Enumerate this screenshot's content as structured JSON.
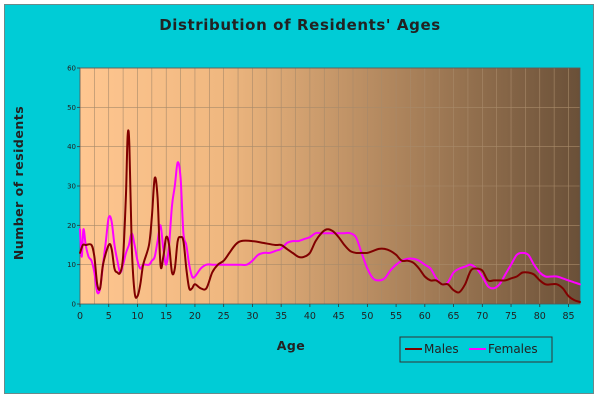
{
  "chart_data": {
    "type": "line",
    "title": "Distribution of Residents' Ages",
    "xlabel": "Age",
    "ylabel": "Number of residents",
    "xlim": [
      0,
      87
    ],
    "ylim": [
      0,
      60
    ],
    "xticks": [
      0,
      5,
      10,
      15,
      20,
      25,
      30,
      35,
      40,
      45,
      50,
      55,
      60,
      65,
      70,
      75,
      80,
      85
    ],
    "yticks": [
      0,
      10,
      20,
      30,
      40,
      50,
      60
    ],
    "grid": true,
    "legend_position": "bottom-right",
    "colors": {
      "background": "#00ccd6",
      "plot_light": "#ffc690",
      "plot_dark": "#6a5038",
      "grid": "#a88a6a"
    },
    "series": [
      {
        "name": "Males",
        "color": "#800000",
        "x": [
          0,
          0.5,
          1,
          2,
          2.5,
          3,
          3.5,
          4,
          5,
          5.5,
          6,
          6.5,
          7,
          7.5,
          8,
          8.3,
          8.6,
          9,
          9.5,
          10,
          10.5,
          11,
          12,
          12.5,
          13,
          13.5,
          14,
          14.5,
          15,
          15.5,
          16,
          16.5,
          17,
          17.5,
          18,
          18.5,
          19,
          19.5,
          20,
          21,
          22,
          23,
          24,
          25,
          26,
          27,
          28,
          30,
          32,
          34,
          35,
          36,
          37,
          38,
          39,
          40,
          41,
          42,
          43,
          44,
          45,
          46,
          47,
          48,
          49,
          50,
          51,
          52,
          53,
          54,
          55,
          56,
          57,
          58,
          59,
          60,
          61,
          62,
          63,
          64,
          65,
          66,
          67,
          68,
          69,
          70,
          71,
          72,
          73,
          74,
          75,
          76,
          77,
          78,
          79,
          80,
          81,
          82,
          83,
          84,
          85,
          86,
          87
        ],
        "values": [
          13,
          15,
          15,
          15,
          12,
          5,
          4,
          10,
          15,
          14,
          9,
          8,
          8,
          12,
          28,
          43,
          40,
          15,
          3,
          2,
          5,
          10,
          15,
          22,
          32,
          27,
          10,
          12,
          17,
          15,
          8,
          9,
          16,
          17,
          16,
          9,
          4,
          4,
          5,
          4,
          4,
          8,
          10,
          11,
          13,
          15,
          16,
          16,
          15.5,
          15,
          15,
          14,
          13,
          12,
          12,
          13,
          16,
          18,
          19,
          18.5,
          17,
          15,
          13.5,
          13,
          13,
          13,
          13.5,
          14,
          14,
          13.5,
          12.5,
          11,
          11,
          10.5,
          9,
          7,
          6,
          6,
          5,
          5,
          3.5,
          3,
          5,
          8.5,
          9,
          8.5,
          6,
          6,
          6,
          6,
          6.5,
          7,
          8,
          8,
          7.5,
          6,
          5,
          5,
          5,
          4,
          2,
          1,
          0.5
        ]
      },
      {
        "name": "Females",
        "color": "#ff00ff",
        "x": [
          0,
          0.3,
          0.6,
          1,
          1.5,
          2,
          2.5,
          3,
          3.5,
          4,
          4.5,
          5,
          5.5,
          6,
          6.5,
          7,
          7.5,
          8,
          8.5,
          9,
          9.5,
          10,
          10.5,
          11,
          12,
          12.5,
          13,
          13.5,
          14,
          14.5,
          15,
          15.5,
          16,
          16.5,
          17,
          17.5,
          18,
          18.5,
          19,
          19.5,
          20,
          21,
          22,
          23,
          24,
          25,
          26,
          27,
          28,
          29,
          30,
          31,
          32,
          33,
          34,
          35,
          36,
          37,
          38,
          39,
          40,
          41,
          42,
          43,
          44,
          45,
          46,
          47,
          48,
          49,
          50,
          51,
          52,
          53,
          54,
          55,
          56,
          57,
          58,
          59,
          60,
          61,
          62,
          63,
          64,
          65,
          66,
          67,
          68,
          69,
          70,
          71,
          72,
          73,
          74,
          75,
          76,
          77,
          78,
          79,
          80,
          81,
          82,
          83,
          84,
          85,
          86,
          87
        ],
        "values": [
          19,
          12,
          19,
          15,
          12,
          11,
          8,
          3,
          4,
          10,
          16,
          22,
          21,
          15,
          11,
          8,
          10,
          13,
          15,
          18,
          15,
          11,
          9,
          10,
          10,
          11,
          12,
          16,
          20,
          14,
          10,
          15,
          25,
          30,
          36,
          32,
          18,
          15,
          10,
          7,
          7,
          9,
          10,
          10,
          10,
          10,
          10,
          10,
          10,
          10,
          11,
          12.5,
          13,
          13,
          13.5,
          14,
          15.5,
          16,
          16,
          16.5,
          17,
          18,
          18,
          18,
          18,
          18,
          18,
          18,
          17,
          13,
          9,
          6.5,
          6,
          6.5,
          8.5,
          10,
          11,
          11.5,
          11.5,
          11,
          10,
          9,
          6.5,
          5,
          5.5,
          8,
          9,
          9.5,
          10,
          9,
          7,
          4.5,
          4,
          5,
          7.5,
          10,
          12.5,
          13,
          12.5,
          10,
          8,
          7,
          7,
          7,
          6.5,
          6,
          5.5,
          5
        ]
      }
    ]
  }
}
